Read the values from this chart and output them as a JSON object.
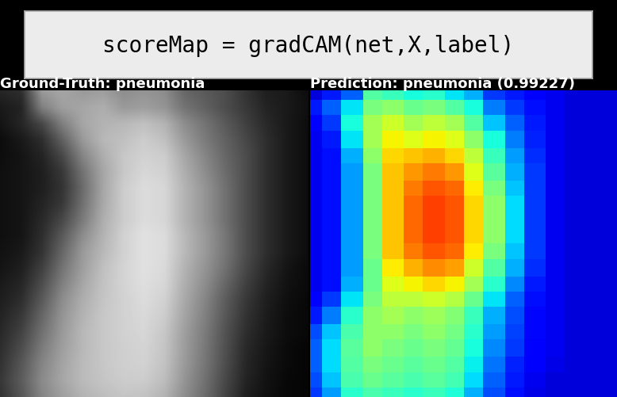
{
  "title": "scoreMap = gradCAM(net,X,label)",
  "left_title": "Ground-Truth: pneumonia",
  "right_title": "Prediction: pneumonia (0.99227)",
  "title_fontsize": 20,
  "subtitle_fontsize": 13,
  "background_color": "#000000",
  "header_bg": "#ececec",
  "header_border": "#aaaaaa",
  "font_family": "monospace",
  "grayscale_data": [
    [
      0.15,
      0.18,
      0.6,
      0.65,
      0.6,
      0.62,
      0.55,
      0.58,
      0.55,
      0.4,
      0.35,
      0.3,
      0.2,
      0.12,
      0.1,
      0.05
    ],
    [
      0.1,
      0.14,
      0.5,
      0.62,
      0.65,
      0.68,
      0.6,
      0.62,
      0.58,
      0.45,
      0.38,
      0.3,
      0.22,
      0.14,
      0.1,
      0.06
    ],
    [
      0.08,
      0.15,
      0.28,
      0.5,
      0.65,
      0.7,
      0.72,
      0.75,
      0.7,
      0.55,
      0.45,
      0.35,
      0.25,
      0.16,
      0.1,
      0.05
    ],
    [
      0.05,
      0.1,
      0.18,
      0.38,
      0.6,
      0.72,
      0.75,
      0.8,
      0.75,
      0.6,
      0.48,
      0.38,
      0.28,
      0.18,
      0.1,
      0.05
    ],
    [
      0.05,
      0.08,
      0.14,
      0.28,
      0.52,
      0.68,
      0.78,
      0.82,
      0.8,
      0.65,
      0.52,
      0.4,
      0.3,
      0.18,
      0.1,
      0.05
    ],
    [
      0.06,
      0.08,
      0.12,
      0.22,
      0.45,
      0.65,
      0.78,
      0.84,
      0.82,
      0.68,
      0.55,
      0.42,
      0.3,
      0.18,
      0.1,
      0.05
    ],
    [
      0.06,
      0.08,
      0.12,
      0.2,
      0.42,
      0.65,
      0.8,
      0.86,
      0.84,
      0.7,
      0.58,
      0.44,
      0.3,
      0.18,
      0.1,
      0.05
    ],
    [
      0.06,
      0.08,
      0.14,
      0.22,
      0.44,
      0.66,
      0.8,
      0.86,
      0.84,
      0.7,
      0.58,
      0.44,
      0.3,
      0.18,
      0.1,
      0.05
    ],
    [
      0.06,
      0.08,
      0.16,
      0.28,
      0.48,
      0.68,
      0.8,
      0.86,
      0.84,
      0.7,
      0.58,
      0.44,
      0.3,
      0.18,
      0.1,
      0.05
    ],
    [
      0.06,
      0.08,
      0.18,
      0.35,
      0.55,
      0.7,
      0.82,
      0.88,
      0.86,
      0.72,
      0.6,
      0.46,
      0.3,
      0.18,
      0.1,
      0.05
    ],
    [
      0.07,
      0.1,
      0.2,
      0.4,
      0.6,
      0.72,
      0.82,
      0.88,
      0.86,
      0.72,
      0.6,
      0.46,
      0.3,
      0.18,
      0.1,
      0.05
    ],
    [
      0.08,
      0.12,
      0.25,
      0.45,
      0.62,
      0.75,
      0.83,
      0.88,
      0.85,
      0.7,
      0.58,
      0.44,
      0.28,
      0.16,
      0.08,
      0.04
    ],
    [
      0.1,
      0.15,
      0.3,
      0.5,
      0.65,
      0.76,
      0.83,
      0.87,
      0.84,
      0.68,
      0.55,
      0.4,
      0.25,
      0.14,
      0.07,
      0.04
    ],
    [
      0.12,
      0.18,
      0.35,
      0.55,
      0.68,
      0.77,
      0.82,
      0.86,
      0.82,
      0.66,
      0.52,
      0.36,
      0.22,
      0.12,
      0.06,
      0.03
    ],
    [
      0.14,
      0.22,
      0.4,
      0.58,
      0.7,
      0.78,
      0.82,
      0.85,
      0.8,
      0.64,
      0.5,
      0.34,
      0.2,
      0.11,
      0.05,
      0.03
    ],
    [
      0.16,
      0.26,
      0.44,
      0.6,
      0.72,
      0.78,
      0.82,
      0.84,
      0.78,
      0.62,
      0.48,
      0.32,
      0.18,
      0.1,
      0.05,
      0.03
    ],
    [
      0.18,
      0.3,
      0.48,
      0.62,
      0.72,
      0.78,
      0.81,
      0.83,
      0.77,
      0.61,
      0.47,
      0.31,
      0.16,
      0.09,
      0.04,
      0.02
    ],
    [
      0.2,
      0.34,
      0.52,
      0.64,
      0.73,
      0.78,
      0.81,
      0.82,
      0.76,
      0.6,
      0.46,
      0.3,
      0.15,
      0.08,
      0.04,
      0.02
    ],
    [
      0.22,
      0.36,
      0.54,
      0.65,
      0.73,
      0.77,
      0.8,
      0.8,
      0.74,
      0.58,
      0.44,
      0.28,
      0.14,
      0.07,
      0.03,
      0.02
    ],
    [
      0.2,
      0.34,
      0.52,
      0.62,
      0.7,
      0.74,
      0.77,
      0.76,
      0.7,
      0.55,
      0.42,
      0.26,
      0.12,
      0.06,
      0.03,
      0.02
    ]
  ],
  "gradcam_data": [
    [
      0.08,
      0.15,
      0.22,
      0.45,
      0.42,
      0.38,
      0.4,
      0.35,
      0.3,
      0.18,
      0.15,
      0.12,
      0.1,
      0.08,
      0.08,
      0.08
    ],
    [
      0.15,
      0.22,
      0.35,
      0.5,
      0.52,
      0.48,
      0.5,
      0.45,
      0.38,
      0.25,
      0.18,
      0.14,
      0.1,
      0.08,
      0.08,
      0.08
    ],
    [
      0.12,
      0.18,
      0.38,
      0.55,
      0.6,
      0.55,
      0.58,
      0.55,
      0.45,
      0.32,
      0.22,
      0.15,
      0.1,
      0.08,
      0.08,
      0.08
    ],
    [
      0.1,
      0.15,
      0.35,
      0.55,
      0.65,
      0.62,
      0.65,
      0.62,
      0.52,
      0.38,
      0.25,
      0.16,
      0.1,
      0.08,
      0.08,
      0.08
    ],
    [
      0.1,
      0.14,
      0.3,
      0.52,
      0.68,
      0.7,
      0.72,
      0.68,
      0.58,
      0.42,
      0.28,
      0.17,
      0.1,
      0.08,
      0.08,
      0.08
    ],
    [
      0.1,
      0.14,
      0.28,
      0.5,
      0.7,
      0.75,
      0.78,
      0.75,
      0.62,
      0.46,
      0.3,
      0.18,
      0.1,
      0.08,
      0.08,
      0.08
    ],
    [
      0.1,
      0.14,
      0.28,
      0.5,
      0.7,
      0.78,
      0.82,
      0.8,
      0.66,
      0.5,
      0.32,
      0.18,
      0.1,
      0.08,
      0.08,
      0.08
    ],
    [
      0.1,
      0.14,
      0.28,
      0.5,
      0.7,
      0.8,
      0.84,
      0.82,
      0.68,
      0.52,
      0.34,
      0.18,
      0.1,
      0.08,
      0.08,
      0.08
    ],
    [
      0.1,
      0.14,
      0.28,
      0.5,
      0.7,
      0.8,
      0.84,
      0.82,
      0.68,
      0.52,
      0.34,
      0.18,
      0.1,
      0.08,
      0.08,
      0.08
    ],
    [
      0.1,
      0.14,
      0.28,
      0.5,
      0.7,
      0.8,
      0.84,
      0.82,
      0.68,
      0.52,
      0.34,
      0.18,
      0.1,
      0.08,
      0.08,
      0.08
    ],
    [
      0.1,
      0.14,
      0.28,
      0.5,
      0.7,
      0.78,
      0.82,
      0.8,
      0.66,
      0.5,
      0.32,
      0.18,
      0.1,
      0.08,
      0.08,
      0.08
    ],
    [
      0.1,
      0.14,
      0.28,
      0.48,
      0.66,
      0.72,
      0.76,
      0.74,
      0.6,
      0.45,
      0.3,
      0.17,
      0.1,
      0.08,
      0.08,
      0.08
    ],
    [
      0.1,
      0.14,
      0.3,
      0.48,
      0.62,
      0.65,
      0.68,
      0.65,
      0.55,
      0.4,
      0.26,
      0.15,
      0.1,
      0.08,
      0.08,
      0.08
    ],
    [
      0.12,
      0.18,
      0.35,
      0.5,
      0.58,
      0.58,
      0.6,
      0.57,
      0.48,
      0.35,
      0.22,
      0.14,
      0.1,
      0.08,
      0.08,
      0.08
    ],
    [
      0.15,
      0.25,
      0.4,
      0.52,
      0.55,
      0.52,
      0.54,
      0.51,
      0.42,
      0.3,
      0.2,
      0.13,
      0.1,
      0.08,
      0.08,
      0.08
    ],
    [
      0.2,
      0.32,
      0.44,
      0.52,
      0.52,
      0.5,
      0.52,
      0.49,
      0.4,
      0.28,
      0.19,
      0.13,
      0.1,
      0.08,
      0.08,
      0.08
    ],
    [
      0.22,
      0.34,
      0.46,
      0.52,
      0.5,
      0.48,
      0.5,
      0.47,
      0.38,
      0.26,
      0.18,
      0.12,
      0.1,
      0.08,
      0.08,
      0.08
    ],
    [
      0.22,
      0.34,
      0.45,
      0.5,
      0.48,
      0.46,
      0.48,
      0.45,
      0.36,
      0.24,
      0.16,
      0.11,
      0.09,
      0.08,
      0.08,
      0.08
    ],
    [
      0.2,
      0.32,
      0.44,
      0.48,
      0.46,
      0.44,
      0.46,
      0.43,
      0.34,
      0.22,
      0.15,
      0.1,
      0.08,
      0.08,
      0.08,
      0.08
    ],
    [
      0.18,
      0.28,
      0.4,
      0.44,
      0.42,
      0.4,
      0.42,
      0.39,
      0.3,
      0.2,
      0.14,
      0.09,
      0.08,
      0.08,
      0.08,
      0.08
    ]
  ]
}
